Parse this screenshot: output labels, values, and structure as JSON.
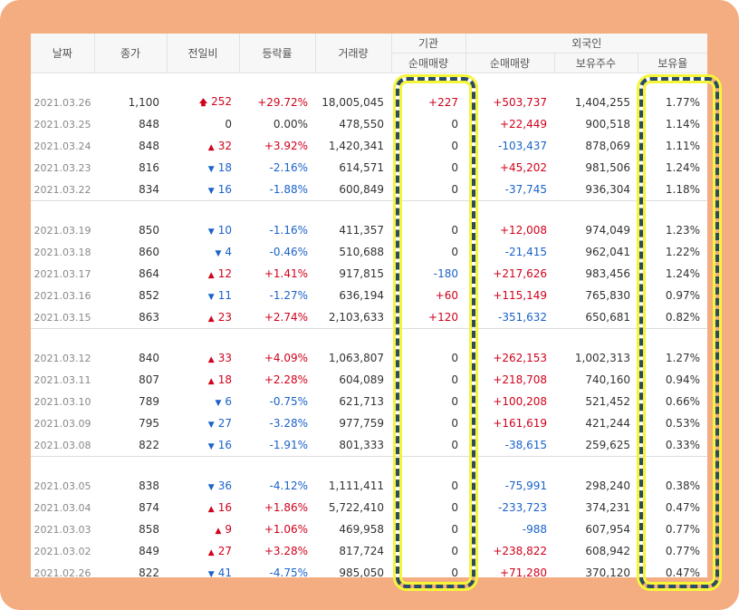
{
  "header": {
    "date": "날짜",
    "close": "종가",
    "change": "전일비",
    "rate": "등락률",
    "volume": "거래량",
    "institution": "기관",
    "foreign": "외국인",
    "inst_net": "순매매량",
    "frgn_net": "순매매량",
    "frgn_shares": "보유주수",
    "frgn_ratio": "보유율"
  },
  "colors": {
    "up": "#d0021b",
    "down": "#1b62c9",
    "frame": "#f4ad80",
    "highlight_border": "#2b4a63",
    "highlight_glow": "#f5f53a"
  },
  "icons": {
    "up_big": "arrow-up-icon",
    "up": "triangle-up-icon",
    "down": "triangle-down-icon"
  },
  "groups": [
    [
      {
        "date": "2021.03.26",
        "close": "1,100",
        "dir": "upbig",
        "change": "252",
        "rate": "+29.72%",
        "volume": "18,005,045",
        "inst": "+227",
        "frgn": "+503,737",
        "shares": "1,404,255",
        "ratio": "1.77%"
      },
      {
        "date": "2021.03.25",
        "close": "848",
        "dir": "none",
        "change": "0",
        "rate": "0.00%",
        "volume": "478,550",
        "inst": "0",
        "frgn": "+22,449",
        "shares": "900,518",
        "ratio": "1.14%"
      },
      {
        "date": "2021.03.24",
        "close": "848",
        "dir": "up",
        "change": "32",
        "rate": "+3.92%",
        "volume": "1,420,341",
        "inst": "0",
        "frgn": "-103,437",
        "shares": "878,069",
        "ratio": "1.11%"
      },
      {
        "date": "2021.03.23",
        "close": "816",
        "dir": "down",
        "change": "18",
        "rate": "-2.16%",
        "volume": "614,571",
        "inst": "0",
        "frgn": "+45,202",
        "shares": "981,506",
        "ratio": "1.24%"
      },
      {
        "date": "2021.03.22",
        "close": "834",
        "dir": "down",
        "change": "16",
        "rate": "-1.88%",
        "volume": "600,849",
        "inst": "0",
        "frgn": "-37,745",
        "shares": "936,304",
        "ratio": "1.18%"
      }
    ],
    [
      {
        "date": "2021.03.19",
        "close": "850",
        "dir": "down",
        "change": "10",
        "rate": "-1.16%",
        "volume": "411,357",
        "inst": "0",
        "frgn": "+12,008",
        "shares": "974,049",
        "ratio": "1.23%"
      },
      {
        "date": "2021.03.18",
        "close": "860",
        "dir": "down",
        "change": "4",
        "rate": "-0.46%",
        "volume": "510,688",
        "inst": "0",
        "frgn": "-21,415",
        "shares": "962,041",
        "ratio": "1.22%"
      },
      {
        "date": "2021.03.17",
        "close": "864",
        "dir": "up",
        "change": "12",
        "rate": "+1.41%",
        "volume": "917,815",
        "inst": "-180",
        "frgn": "+217,626",
        "shares": "983,456",
        "ratio": "1.24%"
      },
      {
        "date": "2021.03.16",
        "close": "852",
        "dir": "down",
        "change": "11",
        "rate": "-1.27%",
        "volume": "636,194",
        "inst": "+60",
        "frgn": "+115,149",
        "shares": "765,830",
        "ratio": "0.97%"
      },
      {
        "date": "2021.03.15",
        "close": "863",
        "dir": "up",
        "change": "23",
        "rate": "+2.74%",
        "volume": "2,103,633",
        "inst": "+120",
        "frgn": "-351,632",
        "shares": "650,681",
        "ratio": "0.82%"
      }
    ],
    [
      {
        "date": "2021.03.12",
        "close": "840",
        "dir": "up",
        "change": "33",
        "rate": "+4.09%",
        "volume": "1,063,807",
        "inst": "0",
        "frgn": "+262,153",
        "shares": "1,002,313",
        "ratio": "1.27%"
      },
      {
        "date": "2021.03.11",
        "close": "807",
        "dir": "up",
        "change": "18",
        "rate": "+2.28%",
        "volume": "604,089",
        "inst": "0",
        "frgn": "+218,708",
        "shares": "740,160",
        "ratio": "0.94%"
      },
      {
        "date": "2021.03.10",
        "close": "789",
        "dir": "down",
        "change": "6",
        "rate": "-0.75%",
        "volume": "621,713",
        "inst": "0",
        "frgn": "+100,208",
        "shares": "521,452",
        "ratio": "0.66%"
      },
      {
        "date": "2021.03.09",
        "close": "795",
        "dir": "down",
        "change": "27",
        "rate": "-3.28%",
        "volume": "977,759",
        "inst": "0",
        "frgn": "+161,619",
        "shares": "421,244",
        "ratio": "0.53%"
      },
      {
        "date": "2021.03.08",
        "close": "822",
        "dir": "down",
        "change": "16",
        "rate": "-1.91%",
        "volume": "801,333",
        "inst": "0",
        "frgn": "-38,615",
        "shares": "259,625",
        "ratio": "0.33%"
      }
    ],
    [
      {
        "date": "2021.03.05",
        "close": "838",
        "dir": "down",
        "change": "36",
        "rate": "-4.12%",
        "volume": "1,111,411",
        "inst": "0",
        "frgn": "-75,991",
        "shares": "298,240",
        "ratio": "0.38%"
      },
      {
        "date": "2021.03.04",
        "close": "874",
        "dir": "up",
        "change": "16",
        "rate": "+1.86%",
        "volume": "5,722,410",
        "inst": "0",
        "frgn": "-233,723",
        "shares": "374,231",
        "ratio": "0.47%"
      },
      {
        "date": "2021.03.03",
        "close": "858",
        "dir": "up",
        "change": "9",
        "rate": "+1.06%",
        "volume": "469,958",
        "inst": "0",
        "frgn": "-988",
        "shares": "607,954",
        "ratio": "0.77%"
      },
      {
        "date": "2021.03.02",
        "close": "849",
        "dir": "up",
        "change": "27",
        "rate": "+3.28%",
        "volume": "817,724",
        "inst": "0",
        "frgn": "+238,822",
        "shares": "608,942",
        "ratio": "0.77%"
      },
      {
        "date": "2021.02.26",
        "close": "822",
        "dir": "down",
        "change": "41",
        "rate": "-4.75%",
        "volume": "985,050",
        "inst": "0",
        "frgn": "+71,280",
        "shares": "370,120",
        "ratio": "0.47%"
      }
    ]
  ]
}
